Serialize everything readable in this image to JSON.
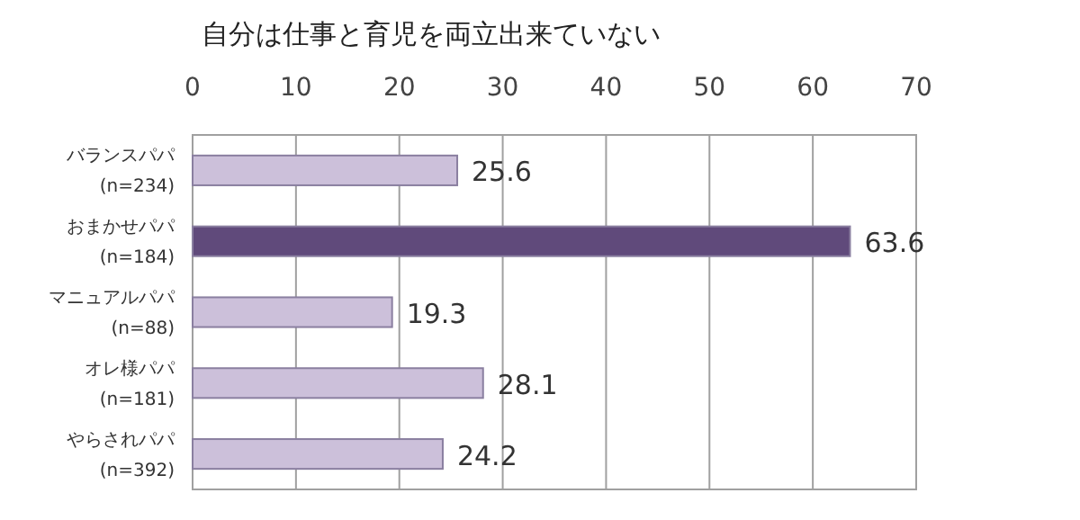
{
  "chart_data": {
    "type": "bar",
    "orientation": "horizontal",
    "title": "自分は仕事と育児を両立出来ていない",
    "categories": [
      "バランスパパ\n(n=234)",
      "おまかせパパ\n(n=184)",
      "マニュアルパパ\n(n=88)",
      "オレ様パパ\n(n=181)",
      "やらされパパ\n(n=392)"
    ],
    "values": [
      25.6,
      63.6,
      19.3,
      28.1,
      24.2
    ],
    "colors": [
      "#ccc0da",
      "#604a7b",
      "#ccc0da",
      "#ccc0da",
      "#ccc0da"
    ],
    "data_labels": true,
    "xlim": [
      0,
      70
    ],
    "xticks": [
      0,
      10,
      20,
      30,
      40,
      50,
      60,
      70
    ],
    "grid": "x"
  }
}
